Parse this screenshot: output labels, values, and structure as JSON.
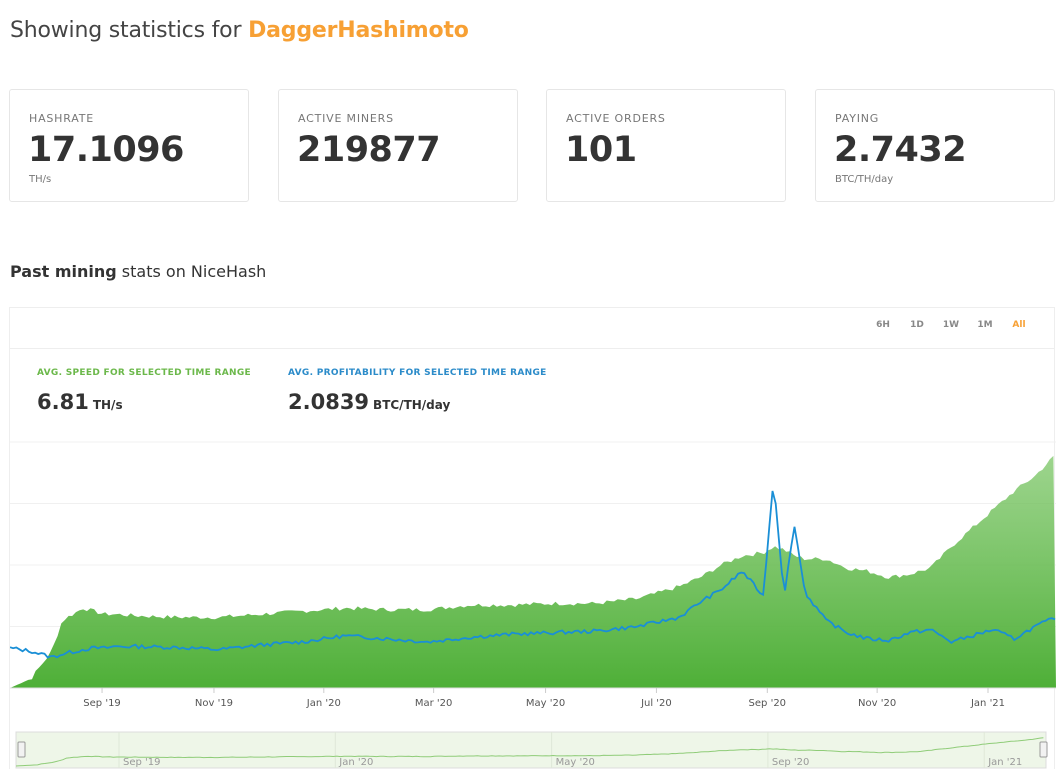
{
  "header": {
    "prefix": "Showing statistics for ",
    "algorithm": "DaggerHashimoto"
  },
  "stats": [
    {
      "label": "HASHRATE",
      "value": "17.1096",
      "unit": "TH/s"
    },
    {
      "label": "ACTIVE MINERS",
      "value": "219877",
      "unit": ""
    },
    {
      "label": "ACTIVE ORDERS",
      "value": "101",
      "unit": ""
    },
    {
      "label": "PAYING",
      "value": "2.7432",
      "unit": "BTC/TH/day"
    }
  ],
  "section": {
    "bold": "Past mining",
    "rest": " stats on NiceHash"
  },
  "ranges": [
    "6H",
    "1D",
    "1W",
    "1M",
    "All"
  ],
  "selected_range": "All",
  "averages": {
    "speed_label": "AVG. SPEED FOR SELECTED TIME RANGE",
    "speed_value": "6.81",
    "speed_unit": "TH/s",
    "profit_label": "AVG. PROFITABILITY FOR SELECTED TIME RANGE",
    "profit_value": "2.0839",
    "profit_unit": "BTC/TH/day"
  },
  "colors": {
    "accent": "#f7a034",
    "speed": "#5ab543",
    "profit": "#1a8fd6",
    "speed_label": "#6bb84a",
    "profit_label": "#2b8bc9"
  },
  "chart_data": {
    "type": "area",
    "x_ticks": [
      "Sep '19",
      "Nov '19",
      "Jan '20",
      "Mar '20",
      "May '20",
      "Jul '20",
      "Sep '20",
      "Nov '20",
      "Jan '21"
    ],
    "navigator_ticks": [
      "Sep '19",
      "Jan '20",
      "May '20",
      "Sep '20",
      "Jan '21"
    ],
    "x": [
      0,
      2,
      4,
      5,
      7,
      8,
      9,
      10,
      12,
      16,
      20,
      24,
      28,
      32,
      36,
      40,
      44,
      48,
      52,
      56,
      60,
      64,
      66,
      68,
      70,
      72,
      73,
      74,
      75,
      76,
      78,
      80,
      82,
      84,
      86,
      88,
      90,
      92,
      94,
      96,
      98,
      100
    ],
    "series": [
      {
        "name": "speed",
        "values": [
          0.0,
          0.3,
          1.2,
          2.2,
          2.6,
          2.5,
          2.4,
          2.4,
          2.35,
          2.3,
          2.3,
          2.4,
          2.5,
          2.6,
          2.55,
          2.55,
          2.7,
          2.7,
          2.75,
          2.75,
          2.9,
          3.3,
          3.6,
          4.0,
          4.3,
          4.4,
          4.6,
          4.5,
          4.3,
          4.2,
          4.2,
          3.9,
          3.8,
          3.6,
          3.7,
          3.9,
          4.6,
          5.2,
          5.8,
          6.4,
          6.9,
          7.6
        ]
      },
      {
        "name": "profitability",
        "values": [
          1.3,
          1.2,
          1.0,
          1.1,
          1.25,
          1.3,
          1.3,
          1.35,
          1.35,
          1.32,
          1.25,
          1.4,
          1.5,
          1.7,
          1.6,
          1.5,
          1.65,
          1.75,
          1.8,
          1.85,
          2.0,
          2.3,
          2.8,
          3.2,
          3.8,
          3.0,
          6.8,
          3.0,
          5.3,
          3.1,
          2.2,
          1.8,
          1.6,
          1.55,
          1.8,
          1.9,
          1.5,
          1.7,
          1.9,
          1.6,
          2.0,
          2.3
        ]
      }
    ],
    "ylim": [
      0,
      8
    ],
    "grid": true
  }
}
